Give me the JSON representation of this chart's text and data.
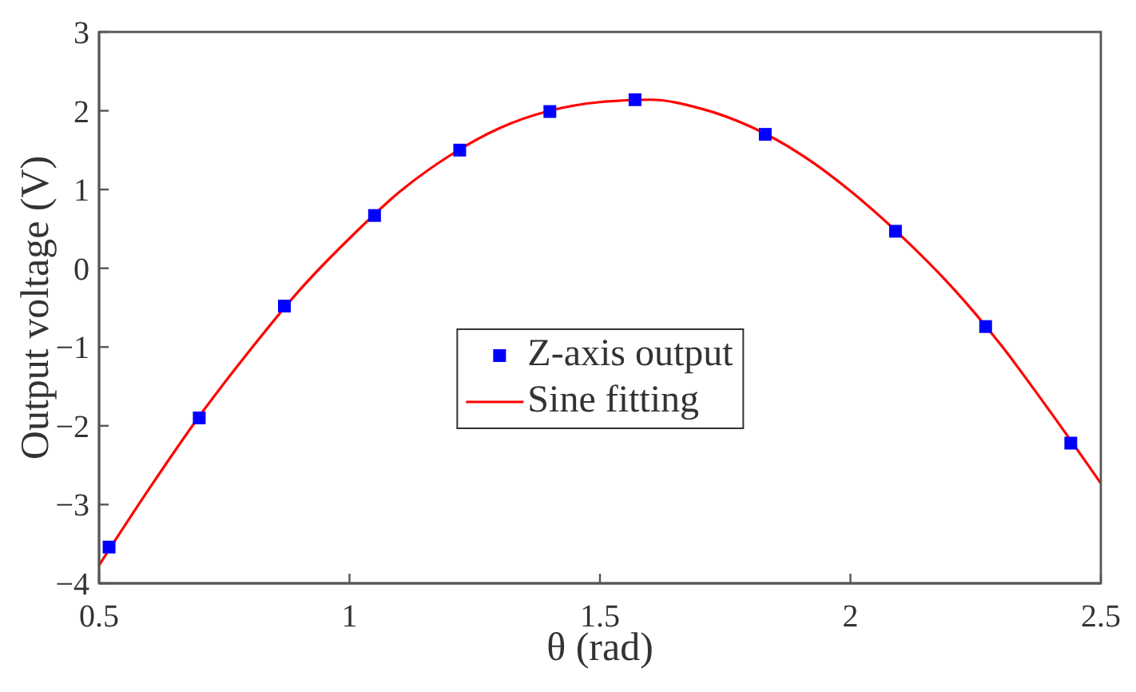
{
  "chart_data": {
    "type": "scatter",
    "xlabel": "θ (rad)",
    "ylabel": "Output voltage (V)",
    "xlim": [
      0.5,
      2.5
    ],
    "xticks": [
      0.5,
      1,
      1.5,
      2,
      2.5
    ],
    "ylim": [
      -4,
      3
    ],
    "yticks": [
      -4,
      -3,
      -2,
      -1,
      0,
      1,
      2,
      3
    ],
    "legend": "center",
    "series": [
      {
        "name": "Z-axis output",
        "color": "#0000ff",
        "marker": "square",
        "x": [
          0.52,
          0.7,
          0.87,
          1.05,
          1.22,
          1.4,
          1.57,
          1.83,
          2.09,
          2.27,
          2.44
        ],
        "values": [
          -3.54,
          -1.9,
          -0.48,
          0.67,
          1.5,
          1.99,
          2.14,
          1.7,
          0.47,
          -0.74,
          -2.22
        ]
      },
      {
        "name": "Sine fitting",
        "type": "line",
        "color": "#ff0000",
        "marker": "none",
        "line_style": "solid",
        "x": [
          0.5,
          0.6,
          0.7,
          0.8,
          0.9,
          1.0,
          1.1,
          1.2,
          1.3,
          1.4,
          1.5,
          1.6,
          1.7,
          1.8,
          1.9,
          2.0,
          2.1,
          2.2,
          2.3,
          2.4,
          2.5
        ],
        "values": [
          -3.77,
          -2.8,
          -1.88,
          -1.05,
          -0.28,
          0.38,
          0.97,
          1.43,
          1.78,
          2.0,
          2.11,
          2.14,
          2.03,
          1.8,
          1.45,
          0.98,
          0.42,
          -0.22,
          -0.97,
          -1.83,
          -2.73
        ]
      }
    ]
  }
}
